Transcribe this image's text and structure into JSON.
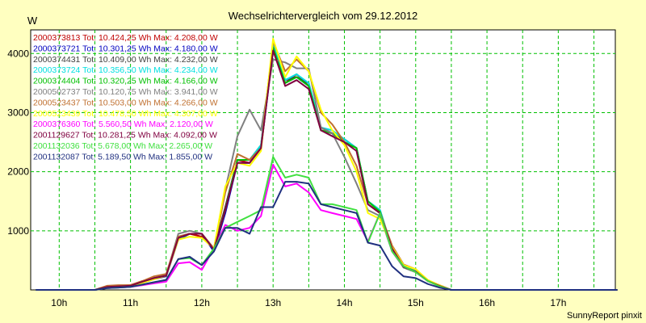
{
  "footer": "SunnyReport pinxit",
  "chart_data": {
    "type": "line",
    "title": "Wechselrichtervergleich vom 29.12.2012",
    "ylabel": "W",
    "xlabel": "",
    "ylim": [
      0,
      4400
    ],
    "xlim": [
      9.6,
      17.8
    ],
    "yticks": [
      1000,
      2000,
      3000,
      4000
    ],
    "xticks": [
      10,
      11,
      12,
      13,
      14,
      15,
      16,
      17
    ],
    "xticklabels": [
      "10h",
      "11h",
      "12h",
      "13h",
      "14h",
      "15h",
      "16h",
      "17h"
    ],
    "grid": true,
    "legend_position": "top-left",
    "colors": {
      "background": "#ffffc0",
      "plot_background": "#ffffff",
      "grid": "#00c000"
    },
    "x": [
      9.67,
      9.83,
      10.0,
      10.17,
      10.33,
      10.5,
      10.67,
      10.83,
      11.0,
      11.17,
      11.33,
      11.5,
      11.67,
      11.83,
      12.0,
      12.17,
      12.33,
      12.5,
      12.67,
      12.83,
      13.0,
      13.17,
      13.33,
      13.5,
      13.67,
      13.83,
      14.0,
      14.17,
      14.33,
      14.5,
      14.67,
      14.83,
      15.0,
      15.17,
      15.33,
      15.5,
      15.67,
      15.83,
      16.0,
      16.17,
      16.33,
      16.5,
      16.67,
      16.83,
      17.0,
      17.17,
      17.33,
      17.5,
      17.67,
      17.83
    ],
    "series": [
      {
        "name": "2000373813",
        "legend": "2000373813 Tot: 10.424,25 Wh Max: 4.208,00 W",
        "color": "#c00000",
        "values": [
          0,
          0,
          0,
          0,
          0,
          0,
          60,
          70,
          80,
          150,
          200,
          250,
          900,
          950,
          900,
          700,
          1400,
          2200,
          2150,
          2400,
          4100,
          3500,
          3650,
          3450,
          2700,
          2650,
          2500,
          2400,
          1450,
          1300,
          700,
          400,
          300,
          150,
          80,
          0,
          0,
          0,
          0,
          0,
          0,
          0,
          0,
          0,
          0,
          0,
          0,
          0,
          0,
          0
        ]
      },
      {
        "name": "2000373721",
        "legend": "2000373721 Tot: 10.301,25 Wh Max: 4.180,00 W",
        "color": "#0000c0",
        "values": [
          0,
          0,
          0,
          0,
          0,
          0,
          40,
          50,
          60,
          120,
          180,
          230,
          850,
          950,
          950,
          650,
          1300,
          2150,
          2150,
          2400,
          4050,
          3550,
          3600,
          3450,
          2750,
          2650,
          2550,
          2400,
          1500,
          1330,
          700,
          380,
          300,
          150,
          70,
          0,
          0,
          0,
          0,
          0,
          0,
          0,
          0,
          0,
          0,
          0,
          0,
          0,
          0,
          0
        ]
      },
      {
        "name": "2000374431",
        "legend": "2000374431 Tot: 10.409,00 Wh Max: 4.232,00 W",
        "color": "#404040",
        "values": [
          0,
          0,
          0,
          0,
          0,
          0,
          50,
          60,
          70,
          140,
          200,
          240,
          900,
          950,
          950,
          700,
          1400,
          2200,
          2200,
          2450,
          4150,
          3550,
          3600,
          3500,
          2750,
          2650,
          2550,
          2400,
          1500,
          1350,
          700,
          400,
          320,
          150,
          70,
          0,
          0,
          0,
          0,
          0,
          0,
          0,
          0,
          0,
          0,
          0,
          0,
          0,
          0,
          0
        ]
      },
      {
        "name": "2000373724",
        "legend": "2000373724 Tot: 10.356,50 Wh Max: 4.234,00 W",
        "color": "#00e0e0",
        "values": [
          0,
          0,
          0,
          0,
          0,
          0,
          40,
          50,
          70,
          130,
          190,
          240,
          870,
          950,
          950,
          680,
          1350,
          2200,
          2200,
          2450,
          4150,
          3550,
          3650,
          3500,
          2750,
          2700,
          2550,
          2400,
          1500,
          1350,
          700,
          390,
          320,
          150,
          70,
          0,
          0,
          0,
          0,
          0,
          0,
          0,
          0,
          0,
          0,
          0,
          0,
          0,
          0,
          0
        ]
      },
      {
        "name": "2000374404",
        "legend": "2000374404 Tot: 10.320,25 Wh Max: 4.166,00 W",
        "color": "#00c000",
        "values": [
          0,
          0,
          0,
          0,
          0,
          0,
          50,
          60,
          70,
          140,
          200,
          240,
          880,
          950,
          950,
          680,
          1350,
          2200,
          2200,
          2400,
          4100,
          3500,
          3600,
          3450,
          2700,
          2650,
          2500,
          2400,
          1500,
          1320,
          700,
          380,
          300,
          150,
          70,
          0,
          0,
          0,
          0,
          0,
          0,
          0,
          0,
          0,
          0,
          0,
          0,
          0,
          0,
          0
        ]
      },
      {
        "name": "2000502737",
        "legend": "2000502737 Tot: 10.120,75 Wh Max: 3.941,00 W",
        "color": "#808080",
        "values": [
          0,
          0,
          0,
          0,
          0,
          0,
          50,
          60,
          70,
          140,
          200,
          250,
          950,
          1000,
          950,
          700,
          1700,
          2600,
          3050,
          2700,
          3900,
          3850,
          3750,
          3750,
          2750,
          2650,
          2250,
          1800,
          1350,
          1250,
          650,
          380,
          300,
          150,
          70,
          0,
          0,
          0,
          0,
          0,
          0,
          0,
          0,
          0,
          0,
          0,
          0,
          0,
          0,
          0
        ]
      },
      {
        "name": "2000523437",
        "legend": "2000523437 Tot: 10.503,00 Wh Max: 4.266,00 W",
        "color": "#c07030",
        "values": [
          0,
          0,
          0,
          0,
          0,
          0,
          70,
          80,
          80,
          150,
          230,
          270,
          900,
          950,
          950,
          700,
          1650,
          2300,
          2200,
          2400,
          4200,
          3700,
          3900,
          3700,
          3000,
          2800,
          2500,
          2100,
          1450,
          1300,
          750,
          430,
          350,
          160,
          80,
          0,
          0,
          0,
          0,
          0,
          0,
          0,
          0,
          0,
          0,
          0,
          0,
          0,
          0,
          0
        ]
      },
      {
        "name": "2000523439",
        "legend": "2000523439 Tot: 10.478,50 Wh Max: 4.307,00 W",
        "color": "#ffff00",
        "values": [
          0,
          0,
          0,
          0,
          0,
          0,
          40,
          50,
          60,
          120,
          180,
          240,
          850,
          900,
          880,
          700,
          1750,
          2150,
          2100,
          2350,
          4250,
          3600,
          3950,
          3700,
          3050,
          2700,
          2450,
          2000,
          1300,
          1200,
          720,
          420,
          350,
          170,
          80,
          0,
          0,
          0,
          0,
          0,
          0,
          0,
          0,
          0,
          0,
          0,
          0,
          0,
          0,
          0
        ]
      },
      {
        "name": "2000376360",
        "legend": "2000376360 Tot: 5.560,50 Wh Max: 2.120,00 W",
        "color": "#ff00ff",
        "values": [
          0,
          0,
          0,
          0,
          0,
          0,
          30,
          40,
          50,
          80,
          110,
          140,
          450,
          470,
          340,
          700,
          1100,
          1000,
          1050,
          1250,
          2120,
          1750,
          1800,
          1650,
          1350,
          1300,
          1250,
          1200,
          820,
          1300,
          650,
          400,
          300,
          150,
          60,
          0,
          0,
          0,
          0,
          0,
          0,
          0,
          0,
          0,
          0,
          0,
          0,
          0,
          0,
          0
        ]
      },
      {
        "name": "2001129627",
        "legend": "2001129627 Tot: 10.281,25 Wh Max: 4.092,00 W",
        "color": "#800040",
        "values": [
          0,
          0,
          0,
          0,
          0,
          0,
          50,
          60,
          70,
          140,
          200,
          240,
          880,
          950,
          950,
          680,
          1350,
          2150,
          2150,
          2400,
          4050,
          3450,
          3550,
          3400,
          2700,
          2600,
          2500,
          2350,
          1450,
          1300,
          700,
          390,
          310,
          150,
          70,
          0,
          0,
          0,
          0,
          0,
          0,
          0,
          0,
          0,
          0,
          0,
          0,
          0,
          0,
          0
        ]
      },
      {
        "name": "2001132036",
        "legend": "2001132036 Tot: 5.678,00 Wh Max: 2.265,00 W",
        "color": "#40e040",
        "values": [
          0,
          0,
          0,
          0,
          0,
          0,
          30,
          40,
          50,
          90,
          130,
          170,
          520,
          540,
          420,
          700,
          1050,
          1150,
          1250,
          1350,
          2250,
          1900,
          1950,
          1900,
          1450,
          1450,
          1400,
          1350,
          800,
          1300,
          650,
          400,
          300,
          150,
          60,
          0,
          0,
          0,
          0,
          0,
          0,
          0,
          0,
          0,
          0,
          0,
          0,
          0,
          0,
          0
        ]
      },
      {
        "name": "2001132087",
        "legend": "2001132087 Tot: 5.189,50 Wh Max: 1.855,00 W",
        "color": "#203080",
        "values": [
          0,
          0,
          0,
          0,
          0,
          0,
          30,
          40,
          50,
          90,
          130,
          170,
          520,
          560,
          420,
          650,
          1050,
          1050,
          950,
          1400,
          1400,
          1830,
          1830,
          1800,
          1450,
          1400,
          1350,
          1300,
          800,
          750,
          400,
          230,
          200,
          100,
          40,
          0,
          0,
          0,
          0,
          0,
          0,
          0,
          0,
          0,
          0,
          0,
          0,
          0,
          0,
          0
        ]
      }
    ]
  }
}
